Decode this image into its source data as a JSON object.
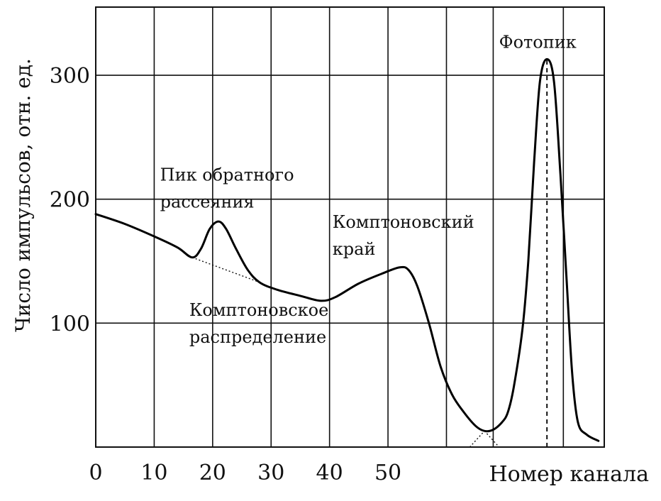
{
  "chart_data": {
    "type": "line",
    "title": "",
    "xlabel": "Номер канала",
    "ylabel": "Число импульсов, отн. ед.",
    "xlim": [
      0,
      87
    ],
    "ylim": [
      0,
      355
    ],
    "grid": true,
    "x_gridlines": [
      0,
      10,
      20,
      30,
      40,
      50,
      60,
      68,
      80,
      87
    ],
    "y_gridlines": [
      100,
      200,
      300
    ],
    "x_tick_labels": [
      {
        "value": 0,
        "label": "0"
      },
      {
        "value": 10,
        "label": "10"
      },
      {
        "value": 20,
        "label": "20"
      },
      {
        "value": 30,
        "label": "30"
      },
      {
        "value": 40,
        "label": "40"
      },
      {
        "value": 50,
        "label": "50"
      }
    ],
    "y_tick_labels": [
      {
        "value": 100,
        "label": "100"
      },
      {
        "value": 200,
        "label": "200"
      },
      {
        "value": 300,
        "label": "300"
      }
    ],
    "series": [
      {
        "points": [
          [
            0,
            188
          ],
          [
            5,
            180
          ],
          [
            10,
            170
          ],
          [
            14,
            161
          ],
          [
            16.5,
            153
          ],
          [
            18,
            160
          ],
          [
            19.5,
            176
          ],
          [
            21,
            182
          ],
          [
            22.3,
            176
          ],
          [
            24,
            160
          ],
          [
            26,
            143
          ],
          [
            28,
            133
          ],
          [
            31,
            127
          ],
          [
            35,
            122
          ],
          [
            38.5,
            118
          ],
          [
            41,
            121
          ],
          [
            45,
            132
          ],
          [
            49,
            140
          ],
          [
            52,
            145
          ],
          [
            53.5,
            143
          ],
          [
            55,
            130
          ],
          [
            57,
            100
          ],
          [
            59,
            65
          ],
          [
            61,
            42
          ],
          [
            63,
            28
          ],
          [
            65,
            17
          ],
          [
            66.5,
            13
          ],
          [
            68,
            14
          ],
          [
            69.5,
            20
          ],
          [
            70.5,
            28
          ],
          [
            71.5,
            48
          ],
          [
            73,
            95
          ],
          [
            74,
            150
          ],
          [
            75,
            230
          ],
          [
            76,
            295
          ],
          [
            77.2,
            313
          ],
          [
            78.4,
            295
          ],
          [
            79.5,
            220
          ],
          [
            80.5,
            140
          ],
          [
            81.5,
            60
          ],
          [
            82.5,
            20
          ],
          [
            84,
            10
          ],
          [
            86,
            5
          ]
        ]
      }
    ],
    "dotted_lines": [
      {
        "role": "compton-continuation",
        "points": [
          [
            16.5,
            153
          ],
          [
            28,
            133
          ]
        ]
      },
      {
        "role": "valley-left",
        "points": [
          [
            64,
            0
          ],
          [
            66.5,
            13
          ]
        ]
      },
      {
        "role": "valley-right",
        "points": [
          [
            66.5,
            13
          ],
          [
            69,
            0
          ]
        ]
      }
    ],
    "dashed_lines": [
      {
        "role": "photopeak-center",
        "points": [
          [
            77.2,
            0
          ],
          [
            77.2,
            313
          ]
        ]
      }
    ],
    "annotations": [
      {
        "id": "backscatter",
        "lines": [
          "Пик обратного",
          "рассеяния"
        ],
        "anchor": [
          11,
          215
        ]
      },
      {
        "id": "compton-edge",
        "lines": [
          "Комптоновский",
          "край"
        ],
        "anchor": [
          40.5,
          177
        ]
      },
      {
        "id": "compton-distribution",
        "lines": [
          "Комптоновское",
          "распределение"
        ],
        "anchor": [
          16,
          106
        ]
      },
      {
        "id": "photopeak",
        "lines": [
          "Фотопик"
        ],
        "anchor": [
          69,
          322
        ]
      }
    ]
  }
}
